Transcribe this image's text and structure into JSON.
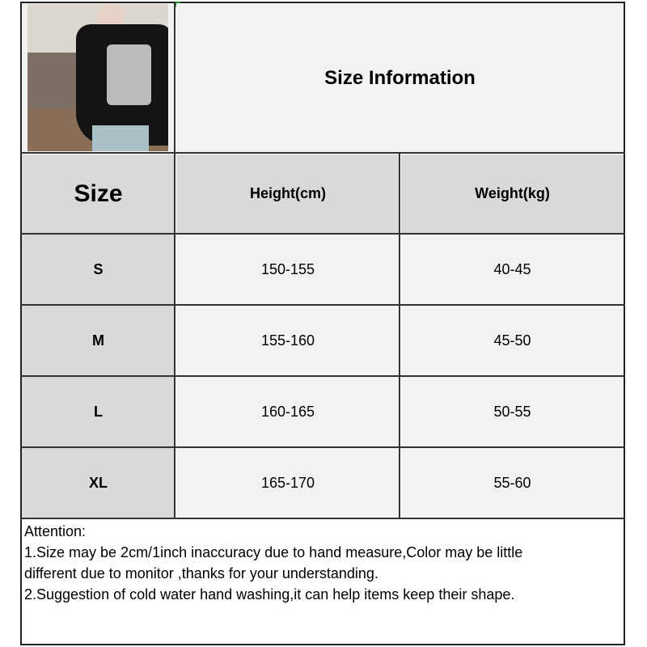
{
  "title": "Size Information",
  "table": {
    "headers": [
      "Size",
      "Height(cm)",
      "Weight(kg)"
    ],
    "rows": [
      {
        "size": "S",
        "height": "150-155",
        "weight": "40-45"
      },
      {
        "size": "M",
        "height": "155-160",
        "weight": "45-50"
      },
      {
        "size": "L",
        "height": "160-165",
        "weight": "50-55"
      },
      {
        "size": "XL",
        "height": "165-170",
        "weight": "55-60"
      }
    ]
  },
  "notes": {
    "heading": "Attention:",
    "line1": "1.Size may be 2cm/1inch inaccuracy due to hand measure,Color may be little",
    "line1b": "different due to monitor ,thanks for your understanding.",
    "line2": "2.Suggestion of cold water hand washing,it can help items keep their shape."
  },
  "colors": {
    "header_gray": "#d9d9d9",
    "cell_light": "#f2f2f2",
    "border": "#333333"
  }
}
